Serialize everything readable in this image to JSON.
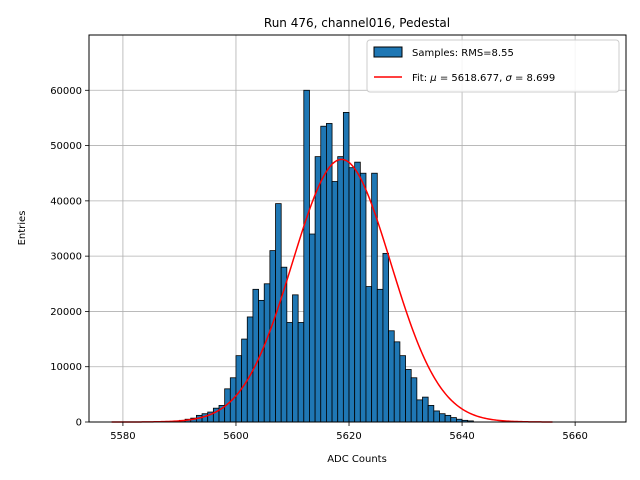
{
  "chart_data": {
    "type": "bar",
    "title": "Run 476, channel016, Pedestal",
    "xlabel": "ADC Counts",
    "ylabel": "Entries",
    "xlim": [
      5574,
      5669
    ],
    "ylim": [
      0,
      70000
    ],
    "xticks": [
      5580,
      5600,
      5620,
      5640,
      5660
    ],
    "yticks": [
      0,
      10000,
      20000,
      30000,
      40000,
      50000,
      60000
    ],
    "grid": true,
    "legend_position": "top-right",
    "legend": {
      "samples_label": "Samples: RMS=8.55",
      "fit_prefix": "Fit: ",
      "fit_mu_symbol": "μ",
      "fit_mu_value": " = 5618.677, ",
      "fit_sigma_symbol": "σ",
      "fit_sigma_value": " = 8.699"
    },
    "colors": {
      "bar_fill": "#1f77b4",
      "bar_edge": "#000000",
      "fit_line": "#ff0000",
      "grid": "#b0b0b0"
    },
    "histogram": {
      "bin_width": 1,
      "bin_start": 5590,
      "counts": [
        300,
        500,
        700,
        1200,
        1500,
        1800,
        2500,
        3000,
        6000,
        8000,
        12000,
        15000,
        19000,
        24000,
        22000,
        25000,
        31000,
        39500,
        28000,
        18000,
        23000,
        18000,
        60000,
        34000,
        48000,
        53500,
        54000,
        43500,
        48000,
        56000,
        46000,
        47000,
        45000,
        24500,
        45000,
        24000,
        30500,
        16500,
        14500,
        12000,
        9500,
        8000,
        4000,
        4500,
        3000,
        2000,
        1500,
        1200,
        800,
        500,
        300,
        200
      ]
    },
    "fit": {
      "mu": 5618.677,
      "sigma": 8.699,
      "amplitude": 47500,
      "x_range": [
        5578,
        5656
      ]
    }
  }
}
